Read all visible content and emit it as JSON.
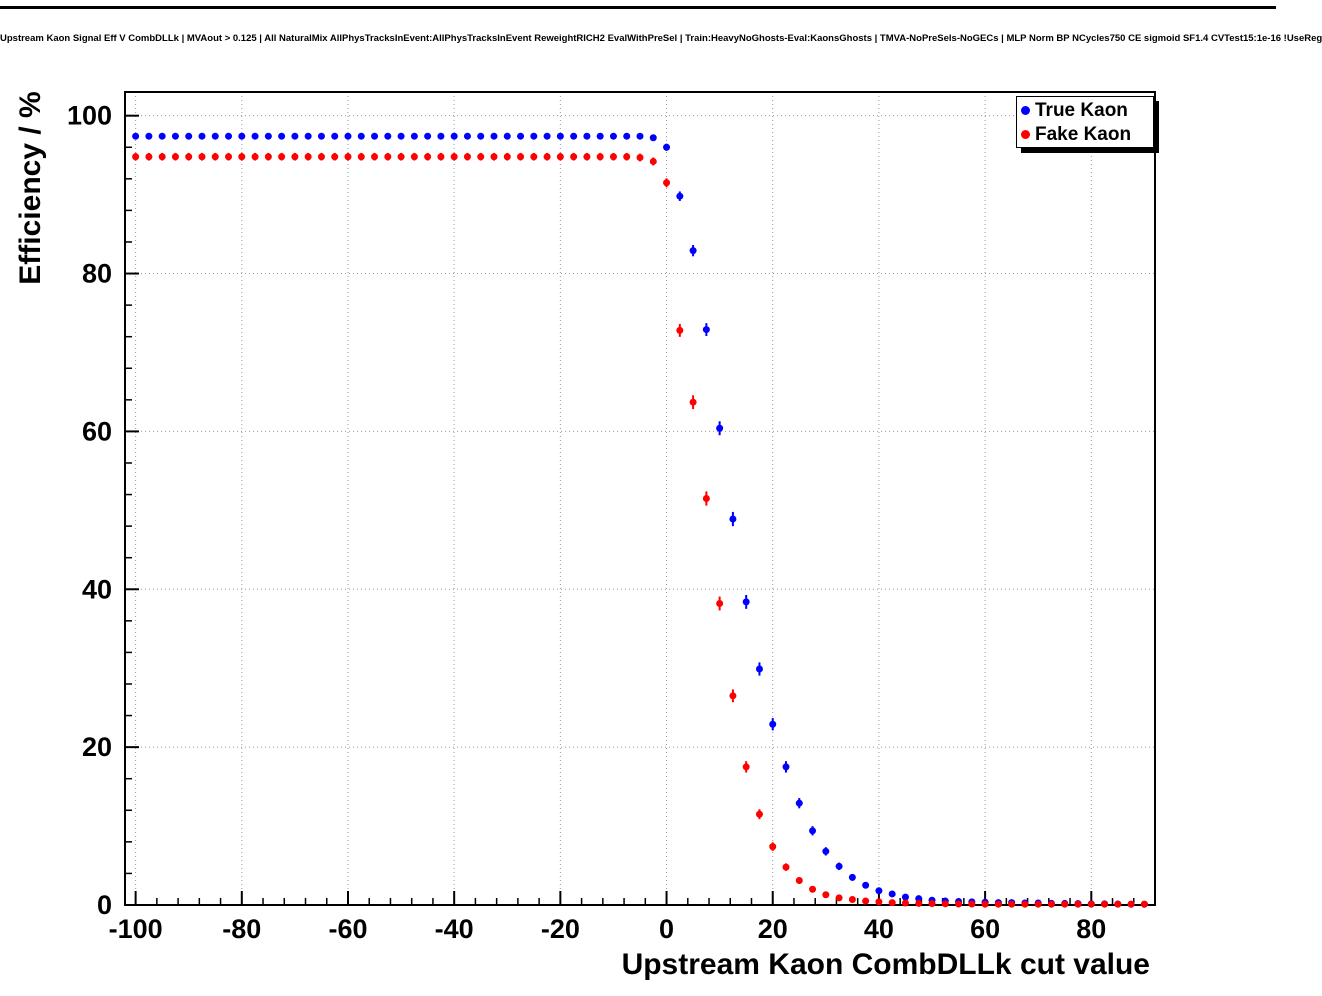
{
  "chart_data": {
    "type": "scatter",
    "title": "Upstream Kaon Signal Eff V CombDLLk | MVAout > 0.125 | All NaturalMix AllPhysTracksInEvent:AllPhysTracksInEvent ReweightRICH2 EvalWithPreSel | Train:HeavyNoGhosts-Eval:KaonsGhosts | TMVA-NoPreSels-NoGECs | MLP Norm BP NCycles750 CE sigmoid SF1.4 CVTest15:1e-16 !UseReg",
    "xlabel": "Upstream Kaon CombDLLk cut value",
    "ylabel": "Efficiency / %",
    "xlim": [
      -102,
      92
    ],
    "ylim": [
      0,
      103
    ],
    "x_ticks": [
      -100,
      -80,
      -60,
      -40,
      -20,
      0,
      20,
      40,
      60,
      80
    ],
    "y_ticks": [
      0,
      20,
      40,
      60,
      80,
      100
    ],
    "x_minor_step": 4,
    "y_minor_step": 4,
    "grid": true,
    "grid_style": "dotted",
    "legend_position": "top-right",
    "x": [
      -100,
      -97.5,
      -95,
      -92.5,
      -90,
      -87.5,
      -85,
      -82.5,
      -80,
      -77.5,
      -75,
      -72.5,
      -70,
      -67.5,
      -65,
      -62.5,
      -60,
      -57.5,
      -55,
      -52.5,
      -50,
      -47.5,
      -45,
      -42.5,
      -40,
      -37.5,
      -35,
      -32.5,
      -30,
      -27.5,
      -25,
      -22.5,
      -20,
      -17.5,
      -15,
      -12.5,
      -10,
      -7.5,
      -5,
      -2.5,
      0,
      2.5,
      5,
      7.5,
      10,
      12.5,
      15,
      17.5,
      20,
      22.5,
      25,
      27.5,
      30,
      32.5,
      35,
      37.5,
      40,
      42.5,
      45,
      47.5,
      50,
      52.5,
      55,
      57.5,
      60,
      62.5,
      65,
      67.5,
      70,
      72.5,
      75,
      77.5,
      80,
      82.5,
      85,
      87.5,
      90
    ],
    "series": [
      {
        "name": "True Kaon",
        "color": "#0000ff",
        "values": [
          97.4,
          97.4,
          97.4,
          97.4,
          97.4,
          97.4,
          97.4,
          97.4,
          97.4,
          97.4,
          97.4,
          97.4,
          97.4,
          97.4,
          97.4,
          97.4,
          97.4,
          97.4,
          97.4,
          97.4,
          97.4,
          97.4,
          97.4,
          97.4,
          97.4,
          97.4,
          97.4,
          97.4,
          97.4,
          97.4,
          97.4,
          97.4,
          97.4,
          97.4,
          97.4,
          97.4,
          97.4,
          97.4,
          97.4,
          97.2,
          96.0,
          89.8,
          82.9,
          72.9,
          60.4,
          48.9,
          38.4,
          29.9,
          22.9,
          17.5,
          12.9,
          9.4,
          6.8,
          4.9,
          3.5,
          2.5,
          1.8,
          1.4,
          1.0,
          0.8,
          0.6,
          0.5,
          0.45,
          0.4,
          0.35,
          0.3,
          0.3,
          0.25,
          0.25,
          0.2,
          0.2,
          0.18,
          0.15,
          0.15,
          0.12,
          0.1,
          0.1
        ]
      },
      {
        "name": "Fake Kaon",
        "color": "#ff0000",
        "values": [
          94.8,
          94.8,
          94.8,
          94.8,
          94.8,
          94.8,
          94.8,
          94.8,
          94.8,
          94.8,
          94.8,
          94.8,
          94.8,
          94.8,
          94.8,
          94.8,
          94.8,
          94.8,
          94.8,
          94.8,
          94.8,
          94.8,
          94.8,
          94.8,
          94.8,
          94.8,
          94.8,
          94.8,
          94.8,
          94.8,
          94.8,
          94.8,
          94.8,
          94.8,
          94.8,
          94.8,
          94.8,
          94.8,
          94.7,
          94.2,
          91.5,
          72.8,
          63.7,
          51.5,
          38.2,
          26.5,
          17.5,
          11.5,
          7.4,
          4.8,
          3.1,
          2.0,
          1.3,
          0.9,
          0.7,
          0.5,
          0.4,
          0.3,
          0.25,
          0.2,
          0.18,
          0.15,
          0.13,
          0.12,
          0.1,
          0.1,
          0.1,
          0.1,
          0.1,
          0.1,
          0.1,
          0.1,
          0.1,
          0.1,
          0.1,
          0.1,
          0.1
        ]
      }
    ]
  }
}
